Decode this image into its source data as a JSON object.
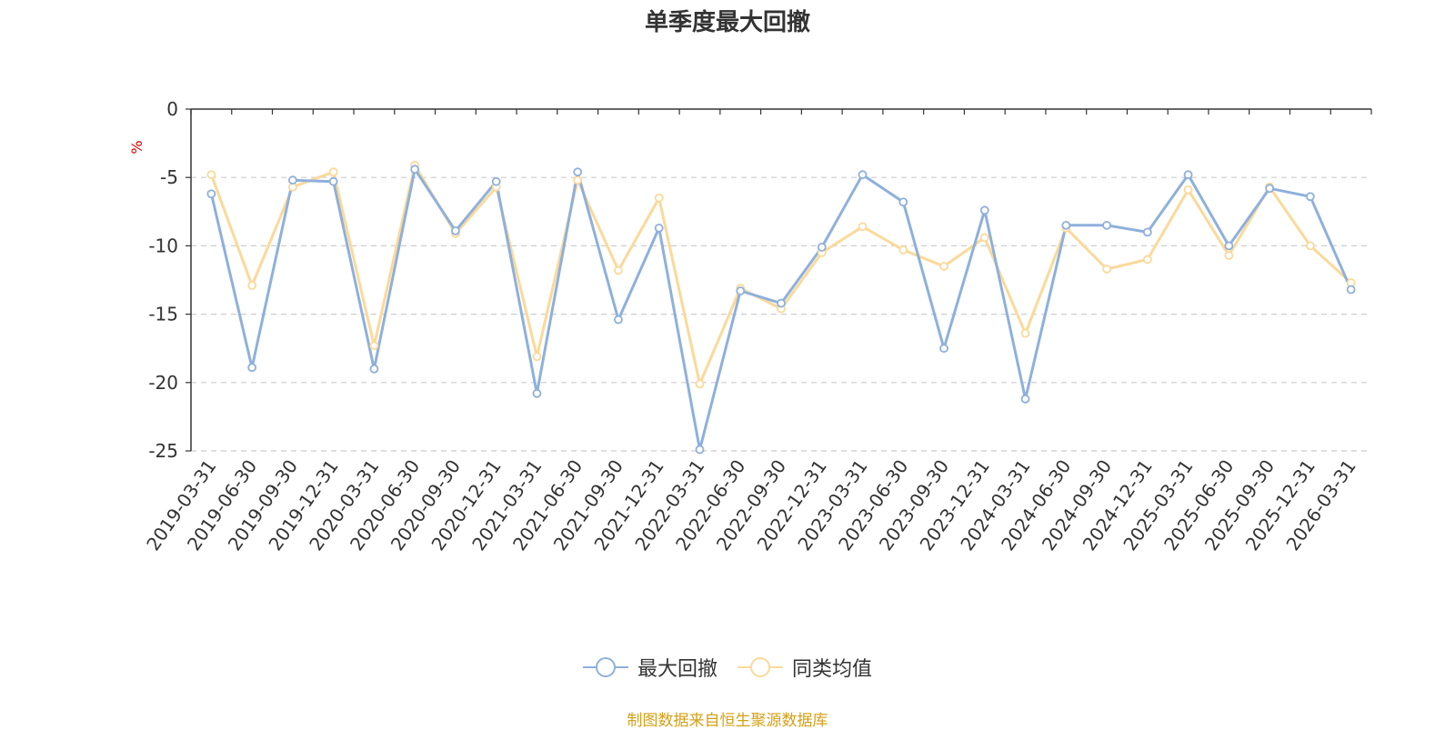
{
  "chart_data": {
    "type": "line",
    "title": "单季度最大回撤",
    "ylabel": "%",
    "ylim": [
      -25,
      0
    ],
    "yticks": [
      0,
      -5,
      -10,
      -15,
      -20,
      -25
    ],
    "grid": true,
    "legend_position": "bottom",
    "categories": [
      "2019-03-31",
      "2019-06-30",
      "2019-09-30",
      "2019-12-31",
      "2020-03-31",
      "2020-06-30",
      "2020-09-30",
      "2020-12-31",
      "2021-03-31",
      "2021-06-30",
      "2021-09-30",
      "2021-12-31",
      "2022-03-31",
      "2022-06-30",
      "2022-09-30",
      "2022-12-31",
      "2023-03-31",
      "2023-06-30",
      "2023-09-30",
      "2023-12-31",
      "2024-03-31",
      "2024-06-30",
      "2024-09-30",
      "2024-12-31",
      "2025-03-31",
      "2025-06-30",
      "2025-09-30",
      "2025-12-31",
      "2026-03-31"
    ],
    "series": [
      {
        "name": "最大回撤",
        "color": "#8eb0dc",
        "values": [
          -6.2,
          -18.9,
          -5.2,
          -5.3,
          -19.0,
          -4.4,
          -8.9,
          -5.3,
          -20.8,
          -4.6,
          -15.4,
          -8.7,
          -24.9,
          -13.3,
          -14.2,
          -10.1,
          -4.8,
          -6.8,
          -17.5,
          -7.4,
          -21.2,
          -8.5,
          -8.5,
          -9.0,
          -4.8,
          -10.0,
          -5.8,
          -6.4,
          -13.2
        ]
      },
      {
        "name": "同类均值",
        "color": "#fbd99a",
        "values": [
          -4.8,
          -12.9,
          -5.7,
          -4.6,
          -17.3,
          -4.1,
          -9.1,
          -5.7,
          -18.1,
          -5.2,
          -11.8,
          -6.5,
          -20.1,
          -13.1,
          -14.6,
          -10.5,
          -8.6,
          -10.3,
          -11.5,
          -9.4,
          -16.4,
          -8.7,
          -11.7,
          -11.0,
          -5.9,
          -10.7,
          -5.7,
          -10.0,
          -12.7
        ]
      }
    ]
  },
  "source_text": "制图数据来自恒生聚源数据库"
}
